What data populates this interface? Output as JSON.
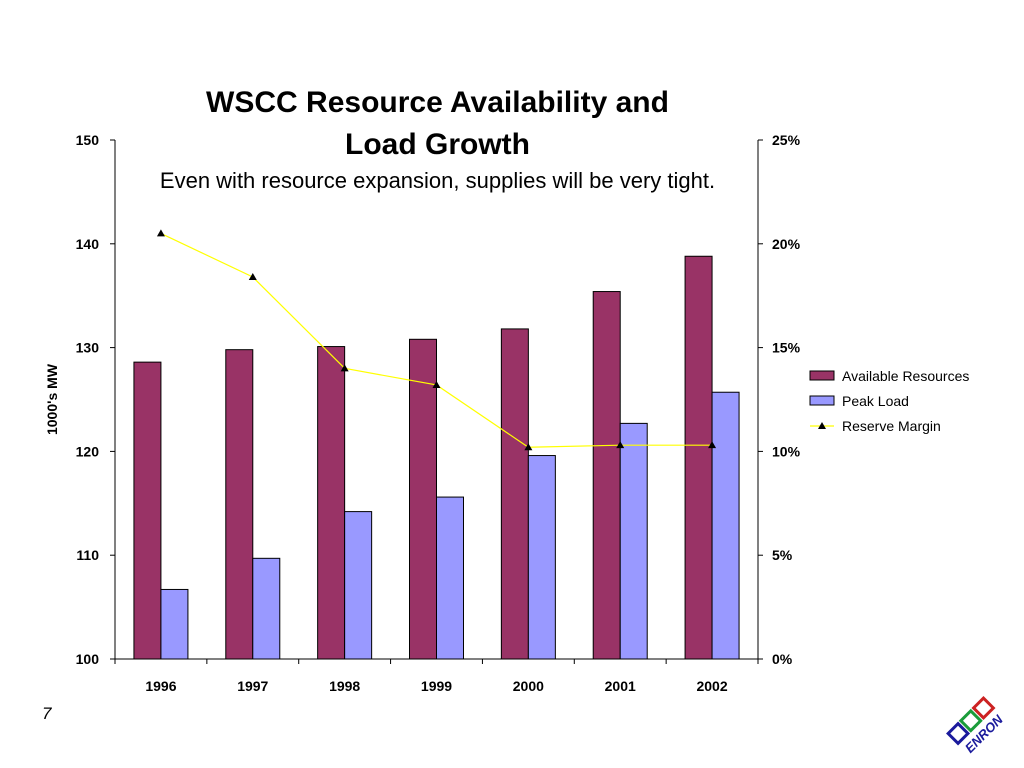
{
  "page": {
    "number": "7",
    "logo_text": "ENRON"
  },
  "chart_data": {
    "type": "bar",
    "title_line1": "WSCC Resource Availability and",
    "title_line2": "Load Growth",
    "subtitle": "Even with resource expansion, supplies will be very tight.",
    "categories": [
      "1996",
      "1997",
      "1998",
      "1999",
      "2000",
      "2001",
      "2002"
    ],
    "ylabel": "1000's MW",
    "ylim": [
      100,
      150
    ],
    "yticks": [
      100,
      110,
      120,
      130,
      140,
      150
    ],
    "y2lim": [
      0,
      25
    ],
    "y2ticks": [
      "0%",
      "5%",
      "10%",
      "15%",
      "20%",
      "25%"
    ],
    "series": [
      {
        "name": "Available Resources",
        "type": "bar",
        "axis": "left",
        "color": "#993366",
        "values": [
          128.6,
          129.8,
          130.1,
          130.8,
          131.8,
          135.4,
          138.8
        ]
      },
      {
        "name": "Peak Load",
        "type": "bar",
        "axis": "left",
        "color": "#9999FF",
        "values": [
          106.7,
          109.7,
          114.2,
          115.6,
          119.6,
          122.7,
          125.7
        ]
      },
      {
        "name": "Reserve Margin",
        "type": "line",
        "axis": "right",
        "color": "#FFFF00",
        "marker_color": "#000000",
        "unit": "%",
        "values": [
          20.5,
          18.4,
          14.0,
          13.2,
          10.2,
          10.3,
          10.3
        ]
      }
    ],
    "legend_position": "right",
    "grid": false
  }
}
